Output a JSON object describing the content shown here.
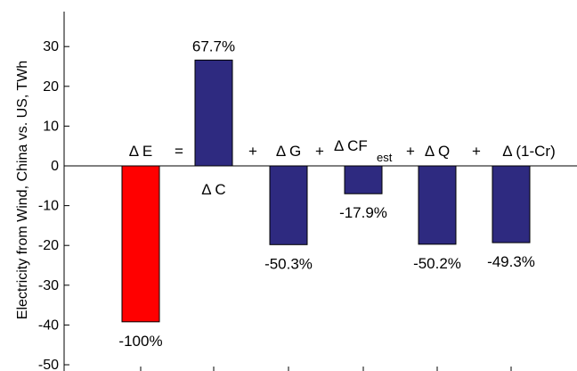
{
  "chart_data": {
    "type": "bar",
    "ylabel": "Electricity from Wind, China vs. US, TWh",
    "ylim": [
      -50,
      40
    ],
    "yticks": [
      -50,
      -40,
      -30,
      -20,
      -10,
      0,
      10,
      20,
      30
    ],
    "grid": false,
    "bars": [
      {
        "term": "ΔE",
        "value": -39.2,
        "label": "-100%",
        "color": "#ff0000"
      },
      {
        "term": "ΔC",
        "value": 26.6,
        "label": "67.7%",
        "color": "#2e2a80"
      },
      {
        "term": "ΔG",
        "value": -19.8,
        "label": "-50.3%",
        "color": "#2e2a80"
      },
      {
        "term": "ΔCF_est",
        "value": -7.0,
        "label": "-17.9%",
        "color": "#2e2a80"
      },
      {
        "term": "ΔQ",
        "value": -19.7,
        "label": "-50.2%",
        "color": "#2e2a80"
      },
      {
        "term": "Δ(1-Cr)",
        "value": -19.3,
        "label": "-49.3%",
        "color": "#2e2a80"
      }
    ],
    "equation": {
      "dE": "Δ E",
      "equals": "=",
      "dC": "Δ C",
      "plus": "+",
      "dG": "Δ G",
      "dCF": "Δ CF",
      "dCF_sub": "est",
      "dQ": "Δ Q",
      "dCr": "Δ (1-Cr)"
    }
  }
}
